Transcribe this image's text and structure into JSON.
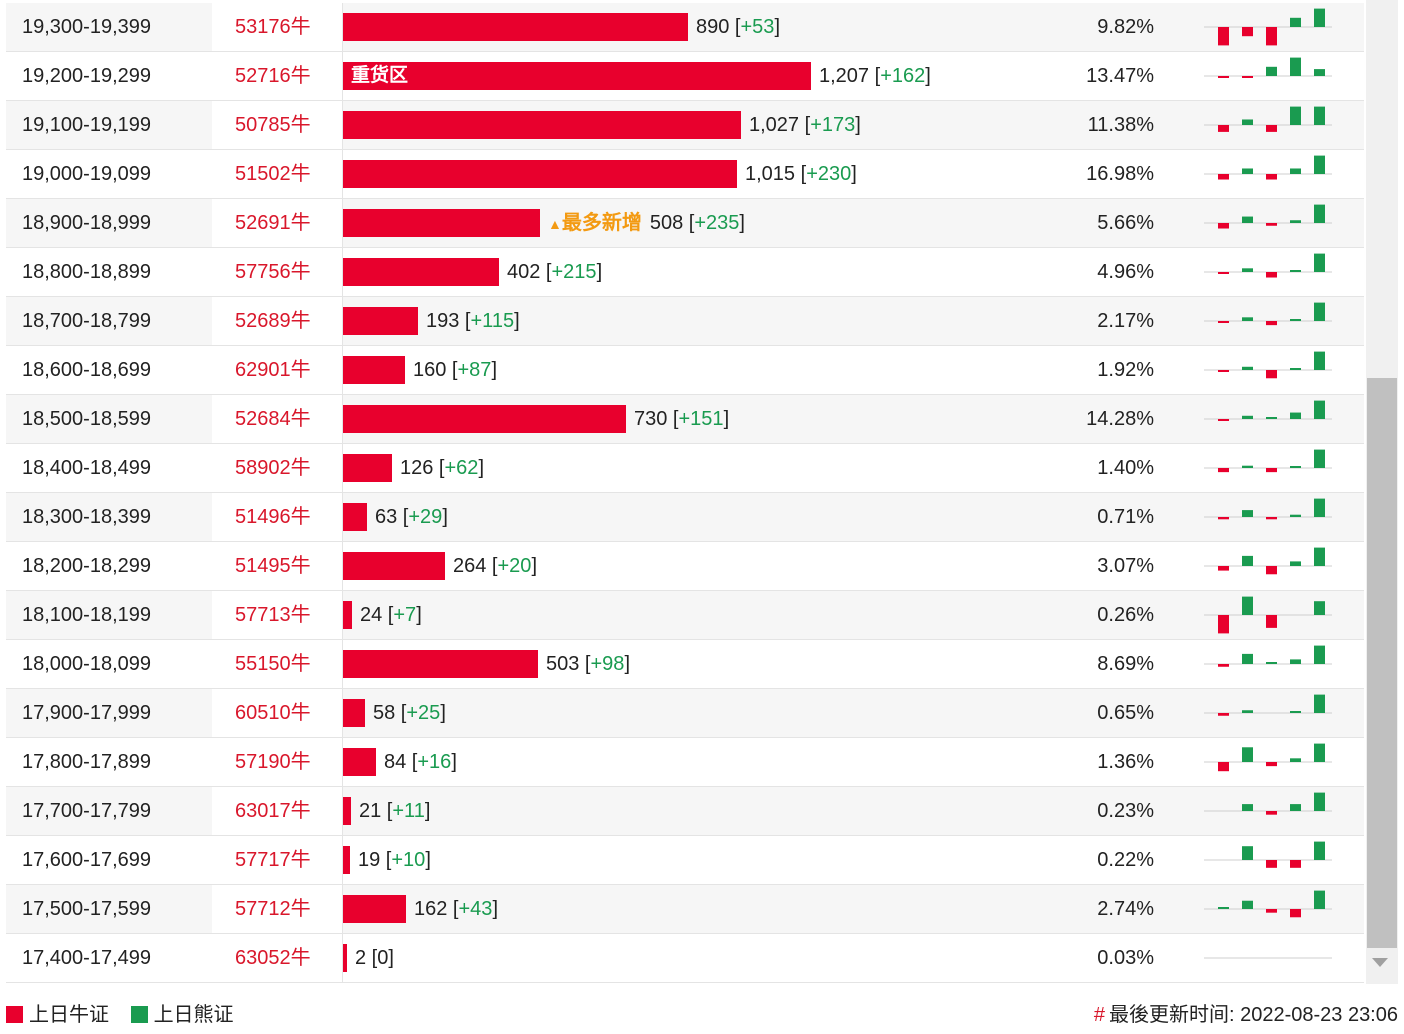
{
  "colors": {
    "bull": "#e8002d",
    "bear": "#1a9b50",
    "code": "#d9172b",
    "highlight": "#f39a12"
  },
  "legend": {
    "bull": "上日牛证",
    "bear": "上日熊证"
  },
  "updated": {
    "hash": "#",
    "label": "最後更新时间:",
    "time": "2022-08-23 23:06"
  },
  "chart_data": {
    "type": "bar",
    "title": "",
    "value_max": 1207,
    "rows": [
      {
        "range": "19,300-19,399",
        "code": "53176牛",
        "value": 890,
        "value_text": "890",
        "delta": "+53",
        "pct": "9.82%",
        "spark": [
          -4,
          -2,
          -4,
          2,
          4
        ]
      },
      {
        "range": "19,200-19,299",
        "code": "52716牛",
        "value": 1207,
        "value_text": "1,207",
        "delta": "+162",
        "pct": "13.47%",
        "tag": "重货区",
        "spark": [
          -0.4,
          -0.4,
          2,
          4,
          1.5
        ]
      },
      {
        "range": "19,100-19,199",
        "code": "50785牛",
        "value": 1027,
        "value_text": "1,027",
        "delta": "+173",
        "pct": "11.38%",
        "spark": [
          -1.5,
          1.2,
          -1.5,
          4,
          4
        ]
      },
      {
        "range": "19,000-19,099",
        "code": "51502牛",
        "value": 1015,
        "value_text": "1,015",
        "delta": "+230",
        "pct": "16.98%",
        "spark": [
          -1.2,
          1.2,
          -1.2,
          1.2,
          4
        ]
      },
      {
        "range": "18,900-18,999",
        "code": "52691牛",
        "value": 508,
        "value_text": "508",
        "delta": "+235",
        "pct": "5.66%",
        "highlight": "最多新增",
        "spark": [
          -1.2,
          1.4,
          -0.6,
          0.6,
          4
        ]
      },
      {
        "range": "18,800-18,899",
        "code": "57756牛",
        "value": 402,
        "value_text": "402",
        "delta": "+215",
        "pct": "4.96%",
        "spark": [
          -0.4,
          0.8,
          -1.2,
          0.3,
          4
        ]
      },
      {
        "range": "18,700-18,799",
        "code": "52689牛",
        "value": 193,
        "value_text": "193",
        "delta": "+115",
        "pct": "2.17%",
        "spark": [
          -0.4,
          0.8,
          -0.9,
          0.3,
          4
        ]
      },
      {
        "range": "18,600-18,699",
        "code": "62901牛",
        "value": 160,
        "value_text": "160",
        "delta": "+87",
        "pct": "1.92%",
        "spark": [
          -0.3,
          0.7,
          -1.8,
          0.3,
          4
        ]
      },
      {
        "range": "18,500-18,599",
        "code": "52684牛",
        "value": 730,
        "value_text": "730",
        "delta": "+151",
        "pct": "14.28%",
        "spark": [
          -0.3,
          0.7,
          0.3,
          1.4,
          4
        ]
      },
      {
        "range": "18,400-18,499",
        "code": "58902牛",
        "value": 126,
        "value_text": "126",
        "delta": "+62",
        "pct": "1.40%",
        "spark": [
          -0.9,
          0.5,
          -0.9,
          0.3,
          4
        ]
      },
      {
        "range": "18,300-18,399",
        "code": "51496牛",
        "value": 63,
        "value_text": "63",
        "delta": "+29",
        "pct": "0.71%",
        "spark": [
          -0.5,
          1.5,
          -0.5,
          0.5,
          4
        ]
      },
      {
        "range": "18,200-18,299",
        "code": "51495牛",
        "value": 264,
        "value_text": "264",
        "delta": "+20",
        "pct": "3.07%",
        "spark": [
          -1,
          2.2,
          -1.8,
          1,
          4
        ]
      },
      {
        "range": "18,100-18,199",
        "code": "57713牛",
        "value": 24,
        "value_text": "24",
        "delta": "+7",
        "pct": "0.26%",
        "spark": [
          -4,
          4,
          -2.8,
          0,
          3
        ]
      },
      {
        "range": "18,000-18,099",
        "code": "55150牛",
        "value": 503,
        "value_text": "503",
        "delta": "+98",
        "pct": "8.69%",
        "spark": [
          -0.6,
          2.2,
          0.3,
          1,
          4
        ]
      },
      {
        "range": "17,900-17,999",
        "code": "60510牛",
        "value": 58,
        "value_text": "58",
        "delta": "+25",
        "pct": "0.65%",
        "spark": [
          -0.6,
          0.6,
          0,
          0.3,
          4
        ]
      },
      {
        "range": "17,800-17,899",
        "code": "57190牛",
        "value": 84,
        "value_text": "84",
        "delta": "+16",
        "pct": "1.36%",
        "spark": [
          -2,
          3.2,
          -0.9,
          0.8,
          4
        ]
      },
      {
        "range": "17,700-17,799",
        "code": "63017牛",
        "value": 21,
        "value_text": "21",
        "delta": "+11",
        "pct": "0.23%",
        "spark": [
          0,
          1.5,
          -0.8,
          1.5,
          4
        ]
      },
      {
        "range": "17,600-17,699",
        "code": "57717牛",
        "value": 19,
        "value_text": "19",
        "delta": "+10",
        "pct": "0.22%",
        "spark": [
          0,
          3,
          -1.7,
          -1.7,
          4
        ]
      },
      {
        "range": "17,500-17,599",
        "code": "57712牛",
        "value": 162,
        "value_text": "162",
        "delta": "+43",
        "pct": "2.74%",
        "spark": [
          0.3,
          1.8,
          -0.8,
          -1.8,
          4
        ]
      },
      {
        "range": "17,400-17,499",
        "code": "63052牛",
        "value": 2,
        "value_text": "2",
        "delta": "0",
        "pct": "0.03%",
        "spark": [
          0,
          0,
          0,
          0,
          0
        ]
      }
    ]
  }
}
